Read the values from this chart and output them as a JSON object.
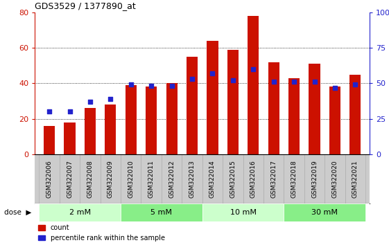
{
  "title": "GDS3529 / 1377890_at",
  "samples": [
    "GSM322006",
    "GSM322007",
    "GSM322008",
    "GSM322009",
    "GSM322010",
    "GSM322011",
    "GSM322012",
    "GSM322013",
    "GSM322014",
    "GSM322015",
    "GSM322016",
    "GSM322017",
    "GSM322018",
    "GSM322019",
    "GSM322020",
    "GSM322021"
  ],
  "counts": [
    16,
    18,
    26,
    28,
    39,
    38,
    40,
    55,
    64,
    59,
    78,
    52,
    43,
    51,
    38,
    45
  ],
  "percentiles": [
    30,
    30,
    37,
    39,
    49,
    48,
    48,
    53,
    57,
    52,
    60,
    51,
    51,
    51,
    47,
    49
  ],
  "dose_groups": [
    {
      "label": "2 mM",
      "start": 0,
      "end": 4,
      "light_color": "#e8ffe8",
      "dark_color": "#e8ffe8"
    },
    {
      "label": "5 mM",
      "start": 4,
      "end": 8,
      "light_color": "#aaffaa",
      "dark_color": "#aaffaa"
    },
    {
      "label": "10 mM",
      "start": 8,
      "end": 12,
      "light_color": "#e8ffe8",
      "dark_color": "#e8ffe8"
    },
    {
      "label": "30 mM",
      "start": 12,
      "end": 16,
      "light_color": "#aaffaa",
      "dark_color": "#aaffaa"
    }
  ],
  "bar_color": "#cc1100",
  "dot_color": "#2222cc",
  "ylim_left": [
    0,
    80
  ],
  "ylim_right": [
    0,
    100
  ],
  "yticks_left": [
    0,
    20,
    40,
    60,
    80
  ],
  "yticks_right": [
    0,
    25,
    50,
    75,
    100
  ],
  "bg_color": "#ffffff",
  "xticklabel_bg": "#cccccc",
  "title_color": "#000000",
  "left_axis_color": "#cc1100",
  "right_axis_color": "#2222cc",
  "dose_row_colors": [
    "#ccffcc",
    "#88ee88",
    "#ccffcc",
    "#88ee88"
  ]
}
